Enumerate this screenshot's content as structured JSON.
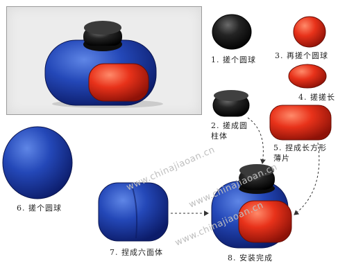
{
  "steps": [
    {
      "id": "step1",
      "label": "1. 搓个圆球"
    },
    {
      "id": "step2",
      "label": "2. 搓成圆柱体"
    },
    {
      "id": "step3",
      "label": "3. 再搓个圆球"
    },
    {
      "id": "step4",
      "label": "4. 搓搓长"
    },
    {
      "id": "step5",
      "label": "5. 捏成长方形薄片"
    },
    {
      "id": "step6",
      "label": "6. 搓个圆球"
    },
    {
      "id": "step7",
      "label": "7. 捏成六面体"
    },
    {
      "id": "step8",
      "label": "8. 安装完成"
    }
  ],
  "watermark": "www.chinajiaoan.cn",
  "colors": {
    "blue": "#1f47b8",
    "red": "#e0301a",
    "black": "#1a1a1a"
  }
}
